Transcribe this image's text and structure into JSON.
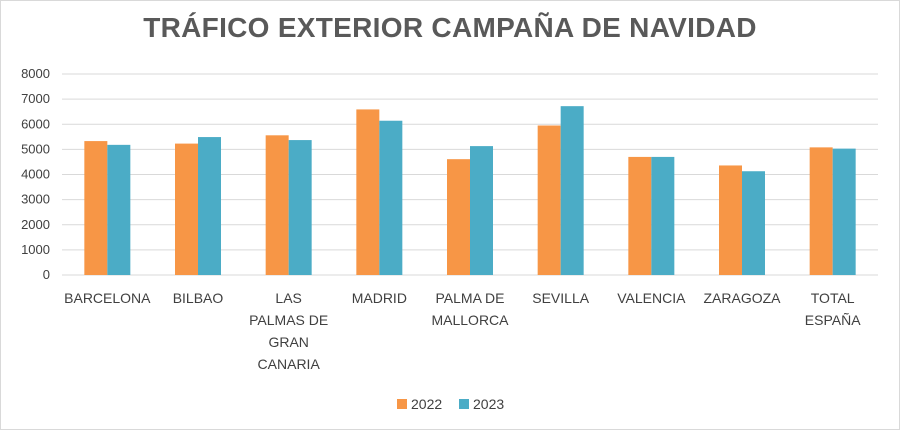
{
  "chart_data": {
    "type": "bar",
    "title": "TRÁFICO EXTERIOR CAMPAÑA DE NAVIDAD",
    "xlabel": "",
    "ylabel": "",
    "ylim": [
      0,
      8000
    ],
    "yticks": [
      0,
      1000,
      2000,
      3000,
      4000,
      5000,
      6000,
      7000,
      8000
    ],
    "grid": true,
    "legend_position": "bottom",
    "categories": [
      [
        "BARCELONA"
      ],
      [
        "BILBAO"
      ],
      [
        "LAS",
        "PALMAS DE",
        "GRAN",
        "CANARIA"
      ],
      [
        "MADRID"
      ],
      [
        "PALMA DE",
        "MALLORCA"
      ],
      [
        "SEVILLA"
      ],
      [
        "VALENCIA"
      ],
      [
        "ZARAGOZA"
      ],
      [
        "TOTAL",
        "ESPAÑA"
      ]
    ],
    "series": [
      {
        "name": "2022",
        "color": "#F79646",
        "values": [
          5330,
          5230,
          5560,
          6590,
          4610,
          5950,
          4700,
          4360,
          5080
        ]
      },
      {
        "name": "2023",
        "color": "#4BACC6",
        "values": [
          5180,
          5490,
          5370,
          6140,
          5130,
          6720,
          4700,
          4130,
          5030
        ]
      }
    ]
  }
}
